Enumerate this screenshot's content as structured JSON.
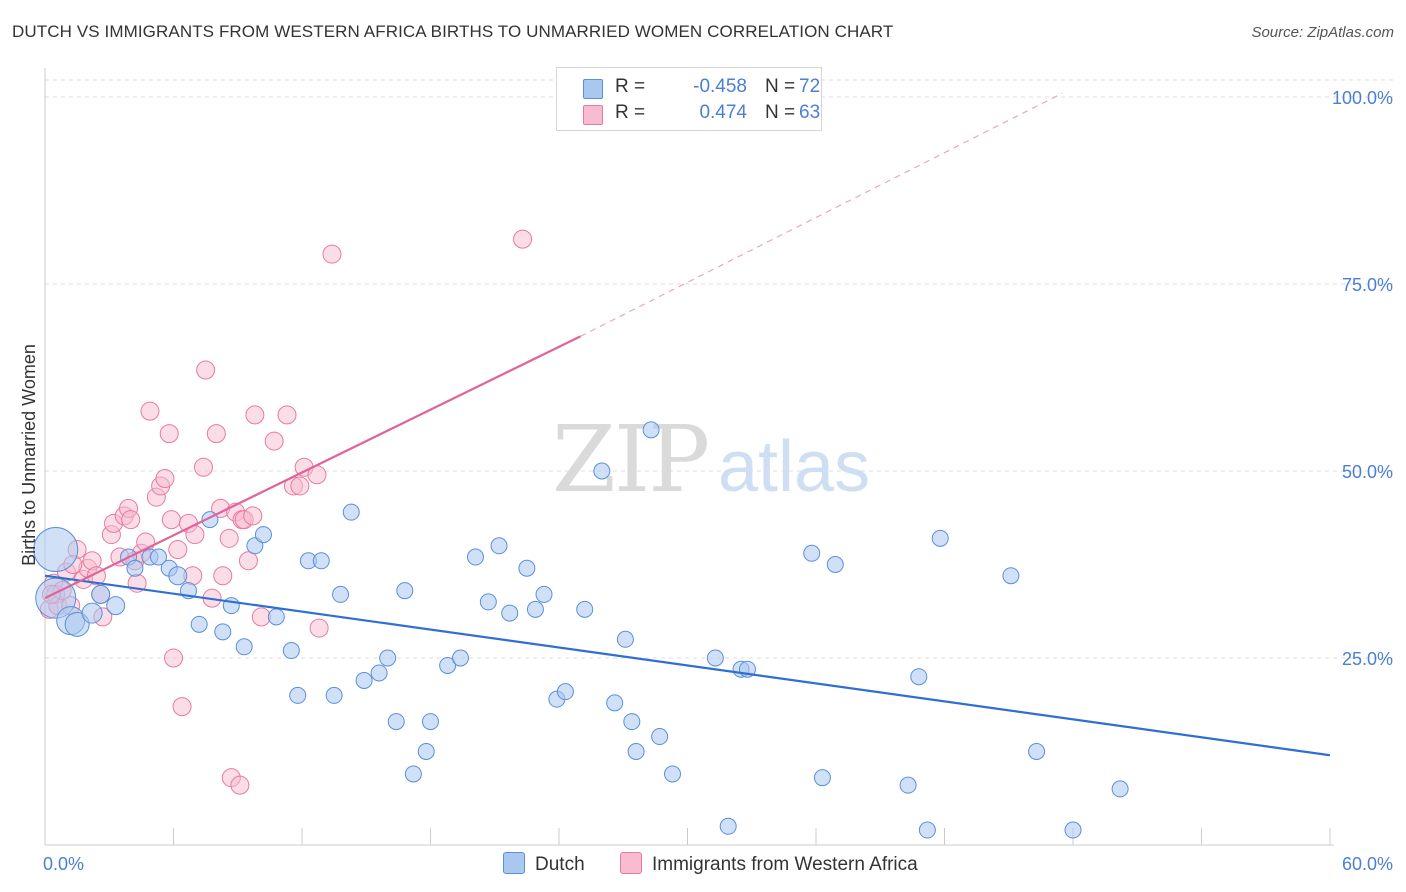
{
  "title": "DUTCH VS IMMIGRANTS FROM WESTERN AFRICA BIRTHS TO UNMARRIED WOMEN CORRELATION CHART",
  "source": "Source: ZipAtlas.com",
  "watermark": {
    "zip": "ZIP",
    "atlas": "atlas"
  },
  "legend_top": {
    "r_label": "R =",
    "n_label": "N =",
    "rows": [
      {
        "series": "Dutch",
        "r": "-0.458",
        "n": "72",
        "color": "#a9c8f0",
        "edge": "#5b8fd9"
      },
      {
        "series": "Immigrants from Western Africa",
        "r": "0.474",
        "n": "63",
        "color": "#f7bcd0",
        "edge": "#e87aa0"
      }
    ]
  },
  "legend_bottom": [
    {
      "label": "Dutch",
      "color": "#a9c8f0",
      "edge": "#5b8fd9"
    },
    {
      "label": "Immigrants from Western Africa",
      "color": "#f7bcd0",
      "edge": "#e87aa0"
    }
  ],
  "chart_data": {
    "type": "scatter",
    "title": "DUTCH VS IMMIGRANTS FROM WESTERN AFRICA BIRTHS TO UNMARRIED WOMEN CORRELATION CHART",
    "xlabel": "",
    "ylabel": "Births to Unmarried Women",
    "xlim": [
      0,
      60
    ],
    "ylim": [
      0,
      100
    ],
    "x_tick_labels": [
      "0.0%",
      "60.0%"
    ],
    "y_ticks": [
      25,
      50,
      75,
      100
    ],
    "y_tick_labels": [
      "25.0%",
      "50.0%",
      "75.0%",
      "100.0%"
    ],
    "grid": "horizontal dashed",
    "series": [
      {
        "name": "Dutch",
        "color": "#5b8fd9",
        "trend": {
          "x0": 0,
          "y0": 36,
          "x1": 60,
          "y1": 12
        },
        "points": [
          [
            0.5,
            39.5,
            22
          ],
          [
            0.5,
            33,
            20
          ],
          [
            1.2,
            30,
            14
          ],
          [
            1.5,
            29.5,
            12
          ],
          [
            2.2,
            31,
            10
          ],
          [
            2.6,
            33.5,
            9
          ],
          [
            3.3,
            32,
            9
          ],
          [
            3.9,
            38.5,
            8
          ],
          [
            4.2,
            37,
            8
          ],
          [
            4.9,
            38.5,
            8
          ],
          [
            5.3,
            38.5,
            8
          ],
          [
            5.8,
            37,
            8
          ],
          [
            6.2,
            36,
            9
          ],
          [
            6.7,
            34,
            8
          ],
          [
            7.2,
            29.5,
            8
          ],
          [
            7.7,
            43.5,
            8
          ],
          [
            8.3,
            28.5,
            8
          ],
          [
            8.7,
            32,
            8
          ],
          [
            9.3,
            26.5,
            8
          ],
          [
            9.8,
            40,
            8
          ],
          [
            10.2,
            41.5,
            8
          ],
          [
            10.8,
            30.5,
            8
          ],
          [
            11.5,
            26,
            8
          ],
          [
            11.8,
            20,
            8
          ],
          [
            12.3,
            38,
            8
          ],
          [
            12.9,
            38,
            8
          ],
          [
            13.5,
            20,
            8
          ],
          [
            13.8,
            33.5,
            8
          ],
          [
            14.3,
            44.5,
            8
          ],
          [
            14.9,
            22,
            8
          ],
          [
            15.6,
            23,
            8
          ],
          [
            16.0,
            25,
            8
          ],
          [
            16.4,
            16.5,
            8
          ],
          [
            16.8,
            34,
            8
          ],
          [
            17.2,
            9.5,
            8
          ],
          [
            17.8,
            12.5,
            8
          ],
          [
            18.0,
            16.5,
            8
          ],
          [
            18.8,
            24,
            8
          ],
          [
            19.4,
            25,
            8
          ],
          [
            20.1,
            38.5,
            8
          ],
          [
            20.7,
            32.5,
            8
          ],
          [
            21.2,
            40,
            8
          ],
          [
            21.7,
            31,
            8
          ],
          [
            22.5,
            37,
            8
          ],
          [
            22.9,
            31.5,
            8
          ],
          [
            23.3,
            33.5,
            8
          ],
          [
            23.9,
            19.5,
            8
          ],
          [
            24.3,
            20.5,
            8
          ],
          [
            25.2,
            31.5,
            8
          ],
          [
            26.0,
            50,
            8
          ],
          [
            26.6,
            19,
            8
          ],
          [
            27.1,
            27.5,
            8
          ],
          [
            27.4,
            16.5,
            8
          ],
          [
            27.6,
            12.5,
            8
          ],
          [
            28.3,
            55.5,
            8
          ],
          [
            28.7,
            14.5,
            8
          ],
          [
            29.3,
            9.5,
            8
          ],
          [
            31.3,
            25,
            8
          ],
          [
            31.9,
            2.5,
            8
          ],
          [
            32.5,
            23.5,
            8
          ],
          [
            32.8,
            23.5,
            8
          ],
          [
            35.8,
            39,
            8
          ],
          [
            36.3,
            9,
            8
          ],
          [
            36.9,
            37.5,
            8
          ],
          [
            40.3,
            8,
            8
          ],
          [
            40.8,
            22.5,
            8
          ],
          [
            41.2,
            2,
            8
          ],
          [
            41.8,
            41,
            8
          ],
          [
            45.1,
            36,
            8
          ],
          [
            46.3,
            12.5,
            8
          ],
          [
            48.0,
            2,
            8
          ],
          [
            50.2,
            7.5,
            8
          ]
        ]
      },
      {
        "name": "Immigrants from Western Africa",
        "color": "#e87aa0",
        "trend": {
          "x0": 0,
          "y0": 33,
          "x1": 25,
          "y1": 68,
          "dash_to_x": 47.5,
          "dash_to_y": 100.5
        },
        "points": [
          [
            0.2,
            31.5,
            9
          ],
          [
            0.4,
            35,
            9
          ],
          [
            0.5,
            33.5,
            9
          ],
          [
            0.6,
            32,
            9
          ],
          [
            0.8,
            34,
            9
          ],
          [
            1.0,
            36.5,
            9
          ],
          [
            1.2,
            32,
            9
          ],
          [
            1.5,
            39.5,
            9
          ],
          [
            1.8,
            35.5,
            9
          ],
          [
            2.0,
            37,
            9
          ],
          [
            2.2,
            38,
            9
          ],
          [
            2.4,
            36,
            9
          ],
          [
            2.6,
            33.5,
            9
          ],
          [
            2.7,
            30.5,
            9
          ],
          [
            3.1,
            41.5,
            9
          ],
          [
            3.2,
            43,
            9
          ],
          [
            3.5,
            38.5,
            9
          ],
          [
            3.7,
            44,
            9
          ],
          [
            3.9,
            45,
            9
          ],
          [
            4.0,
            43.5,
            9
          ],
          [
            4.2,
            38,
            9
          ],
          [
            4.3,
            35,
            9
          ],
          [
            4.5,
            39,
            9
          ],
          [
            4.7,
            40.5,
            9
          ],
          [
            4.9,
            58,
            9
          ],
          [
            5.2,
            46.5,
            9
          ],
          [
            5.4,
            48,
            9
          ],
          [
            5.6,
            49,
            9
          ],
          [
            5.8,
            55,
            9
          ],
          [
            5.9,
            43.5,
            9
          ],
          [
            6.0,
            25,
            9
          ],
          [
            6.2,
            39.5,
            9
          ],
          [
            6.4,
            18.5,
            9
          ],
          [
            6.7,
            43,
            9
          ],
          [
            6.9,
            36,
            9
          ],
          [
            7.0,
            41.5,
            9
          ],
          [
            7.4,
            50.5,
            9
          ],
          [
            7.5,
            63.5,
            9
          ],
          [
            7.8,
            33,
            9
          ],
          [
            8.0,
            55,
            9
          ],
          [
            8.2,
            45,
            9
          ],
          [
            8.3,
            36,
            9
          ],
          [
            8.6,
            41,
            9
          ],
          [
            8.7,
            9,
            9
          ],
          [
            8.9,
            44.5,
            9
          ],
          [
            9.1,
            8,
            9
          ],
          [
            9.2,
            43.5,
            9
          ],
          [
            9.3,
            43.5,
            9
          ],
          [
            9.5,
            38,
            9
          ],
          [
            9.7,
            44,
            9
          ],
          [
            9.8,
            57.5,
            9
          ],
          [
            10.1,
            30.5,
            9
          ],
          [
            10.7,
            54,
            9
          ],
          [
            11.3,
            57.5,
            9
          ],
          [
            11.6,
            48,
            9
          ],
          [
            11.9,
            48,
            9
          ],
          [
            12.1,
            50.5,
            9
          ],
          [
            12.7,
            49.5,
            9
          ],
          [
            12.8,
            29,
            9
          ],
          [
            13.4,
            79,
            9
          ],
          [
            22.3,
            81,
            9
          ],
          [
            0.3,
            33.5,
            9
          ],
          [
            1.3,
            37.5,
            9
          ]
        ]
      }
    ]
  }
}
